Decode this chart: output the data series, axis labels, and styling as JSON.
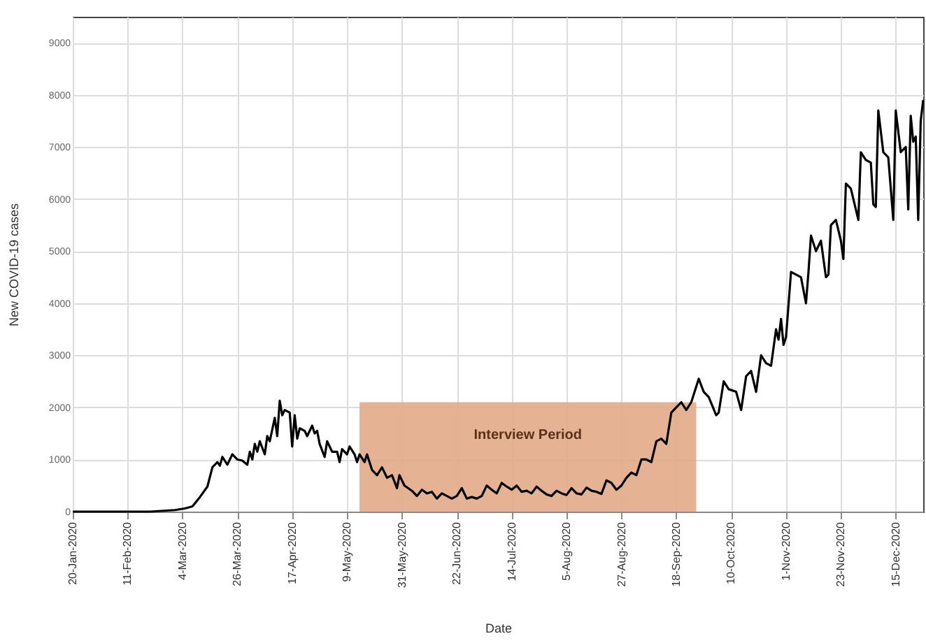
{
  "chart_data": {
    "type": "line",
    "xlabel": "Date",
    "ylabel": "New  COVID-19 cases",
    "xlim": [
      "2020-01-20",
      "2020-12-26"
    ],
    "ylim": [
      0,
      9500
    ],
    "yticks": [
      0,
      1000,
      2000,
      3000,
      4000,
      5000,
      6000,
      7000,
      8000,
      9000
    ],
    "xticks": [
      {
        "value": "2020-01-20",
        "label": "20-Jan-2020"
      },
      {
        "value": "2020-02-11",
        "label": "11-Feb-2020"
      },
      {
        "value": "2020-03-04",
        "label": "4-Mar-2020"
      },
      {
        "value": "2020-03-26",
        "label": "26-Mar-2020"
      },
      {
        "value": "2020-04-17",
        "label": "17-Apr-2020"
      },
      {
        "value": "2020-05-09",
        "label": "9-May-2020"
      },
      {
        "value": "2020-05-31",
        "label": "31-May-2020"
      },
      {
        "value": "2020-06-22",
        "label": "22-Jun-2020"
      },
      {
        "value": "2020-07-14",
        "label": "14-Jul-2020"
      },
      {
        "value": "2020-08-05",
        "label": "5-Aug-2020"
      },
      {
        "value": "2020-08-27",
        "label": "27-Aug-2020"
      },
      {
        "value": "2020-09-18",
        "label": "18-Sep-2020"
      },
      {
        "value": "2020-10-10",
        "label": "10-Oct-2020"
      },
      {
        "value": "2020-11-01",
        "label": "1-Nov-2020"
      },
      {
        "value": "2020-11-23",
        "label": "23-Nov-2020"
      },
      {
        "value": "2020-12-15",
        "label": "15-Dec-2020"
      }
    ],
    "grid": true,
    "line_style": "solid",
    "marker": "none",
    "series": [
      {
        "name": "Interview Period",
        "type": "area",
        "color": "#e2ab87",
        "x": [
          "2020-05-14",
          "2020-09-26"
        ],
        "values": [
          2100,
          2100
        ]
      },
      {
        "color": "#000000",
        "x": [
          "2020-01-20",
          "2020-02-20",
          "2020-03-01",
          "2020-03-05",
          "2020-03-08",
          "2020-03-11",
          "2020-03-14",
          "2020-03-16",
          "2020-03-18",
          "2020-03-19",
          "2020-03-20",
          "2020-03-22",
          "2020-03-24",
          "2020-03-26",
          "2020-03-28",
          "2020-03-30",
          "2020-03-31",
          "2020-04-01",
          "2020-04-02",
          "2020-04-03",
          "2020-04-04",
          "2020-04-06",
          "2020-04-07",
          "2020-04-08",
          "2020-04-10",
          "2020-04-11",
          "2020-04-12",
          "2020-04-13",
          "2020-04-14",
          "2020-04-16",
          "2020-04-17",
          "2020-04-18",
          "2020-04-19",
          "2020-04-20",
          "2020-04-22",
          "2020-04-23",
          "2020-04-25",
          "2020-04-26",
          "2020-04-27",
          "2020-04-28",
          "2020-04-30",
          "2020-05-01",
          "2020-05-03",
          "2020-05-05",
          "2020-05-06",
          "2020-05-07",
          "2020-05-09",
          "2020-05-10",
          "2020-05-12",
          "2020-05-13",
          "2020-05-14",
          "2020-05-16",
          "2020-05-17",
          "2020-05-19",
          "2020-05-21",
          "2020-05-23",
          "2020-05-25",
          "2020-05-27",
          "2020-05-29",
          "2020-05-30",
          "2020-06-01",
          "2020-06-04",
          "2020-06-06",
          "2020-06-08",
          "2020-06-10",
          "2020-06-12",
          "2020-06-14",
          "2020-06-16",
          "2020-06-18",
          "2020-06-20",
          "2020-06-22",
          "2020-06-24",
          "2020-06-26",
          "2020-06-28",
          "2020-06-30",
          "2020-07-02",
          "2020-07-04",
          "2020-07-06",
          "2020-07-08",
          "2020-07-10",
          "2020-07-12",
          "2020-07-14",
          "2020-07-16",
          "2020-07-18",
          "2020-07-20",
          "2020-07-22",
          "2020-07-24",
          "2020-07-26",
          "2020-07-28",
          "2020-07-30",
          "2020-08-01",
          "2020-08-03",
          "2020-08-05",
          "2020-08-07",
          "2020-08-09",
          "2020-08-11",
          "2020-08-13",
          "2020-08-15",
          "2020-08-17",
          "2020-08-19",
          "2020-08-21",
          "2020-08-23",
          "2020-08-25",
          "2020-08-27",
          "2020-08-29",
          "2020-08-31",
          "2020-09-02",
          "2020-09-04",
          "2020-09-06",
          "2020-09-08",
          "2020-09-10",
          "2020-09-12",
          "2020-09-14",
          "2020-09-16",
          "2020-09-18",
          "2020-09-20",
          "2020-09-22",
          "2020-09-24",
          "2020-09-27",
          "2020-09-29",
          "2020-10-01",
          "2020-10-04",
          "2020-10-05",
          "2020-10-07",
          "2020-10-09",
          "2020-10-12",
          "2020-10-14",
          "2020-10-16",
          "2020-10-18",
          "2020-10-20",
          "2020-10-22",
          "2020-10-24",
          "2020-10-26",
          "2020-10-28",
          "2020-10-29",
          "2020-10-30",
          "2020-10-31",
          "2020-11-01",
          "2020-11-03",
          "2020-11-05",
          "2020-11-07",
          "2020-11-09",
          "2020-11-10",
          "2020-11-11",
          "2020-11-13",
          "2020-11-15",
          "2020-11-17",
          "2020-11-18",
          "2020-11-19",
          "2020-11-21",
          "2020-11-23",
          "2020-11-24",
          "2020-11-25",
          "2020-11-27",
          "2020-11-28",
          "2020-11-30",
          "2020-12-01",
          "2020-12-03",
          "2020-12-05",
          "2020-12-06",
          "2020-12-07",
          "2020-12-08",
          "2020-12-10",
          "2020-12-12",
          "2020-12-14",
          "2020-12-15",
          "2020-12-17",
          "2020-12-19",
          "2020-12-20",
          "2020-12-21",
          "2020-12-22",
          "2020-12-23",
          "2020-12-24",
          "2020-12-25",
          "2020-12-26"
        ],
        "values": [
          0,
          0,
          30,
          60,
          100,
          280,
          480,
          850,
          950,
          880,
          1050,
          900,
          1100,
          1000,
          980,
          900,
          1150,
          1000,
          1300,
          1150,
          1350,
          1100,
          1450,
          1350,
          1800,
          1450,
          2130,
          1850,
          1950,
          1900,
          1250,
          1850,
          1400,
          1600,
          1550,
          1450,
          1650,
          1500,
          1550,
          1300,
          1050,
          1350,
          1150,
          1150,
          950,
          1200,
          1100,
          1250,
          1100,
          950,
          1100,
          950,
          1100,
          800,
          700,
          850,
          650,
          700,
          450,
          700,
          500,
          400,
          300,
          420,
          350,
          380,
          250,
          350,
          300,
          250,
          300,
          450,
          250,
          280,
          250,
          300,
          500,
          420,
          350,
          550,
          480,
          420,
          500,
          380,
          400,
          350,
          480,
          400,
          330,
          300,
          400,
          350,
          320,
          450,
          350,
          330,
          460,
          400,
          380,
          340,
          600,
          550,
          420,
          500,
          650,
          750,
          700,
          1000,
          1000,
          950,
          1350,
          1400,
          1300,
          1900,
          2000,
          2100,
          1950,
          2100,
          2550,
          2300,
          2200,
          1850,
          1900,
          2500,
          2350,
          2300,
          1950,
          2600,
          2700,
          2300,
          3000,
          2850,
          2800,
          3500,
          3300,
          3700,
          3200,
          3350,
          4600,
          4550,
          4500,
          4000,
          4600,
          5300,
          5000,
          5200,
          4500,
          4550,
          5500,
          5600,
          5200,
          4850,
          6300,
          6200,
          6000,
          5600,
          6900,
          6750,
          6700,
          5900,
          5850,
          7700,
          6900,
          6800,
          5600,
          7700,
          6900,
          7000,
          5800,
          7600,
          7100,
          7200,
          5600,
          7500,
          7900
        ]
      }
    ]
  }
}
